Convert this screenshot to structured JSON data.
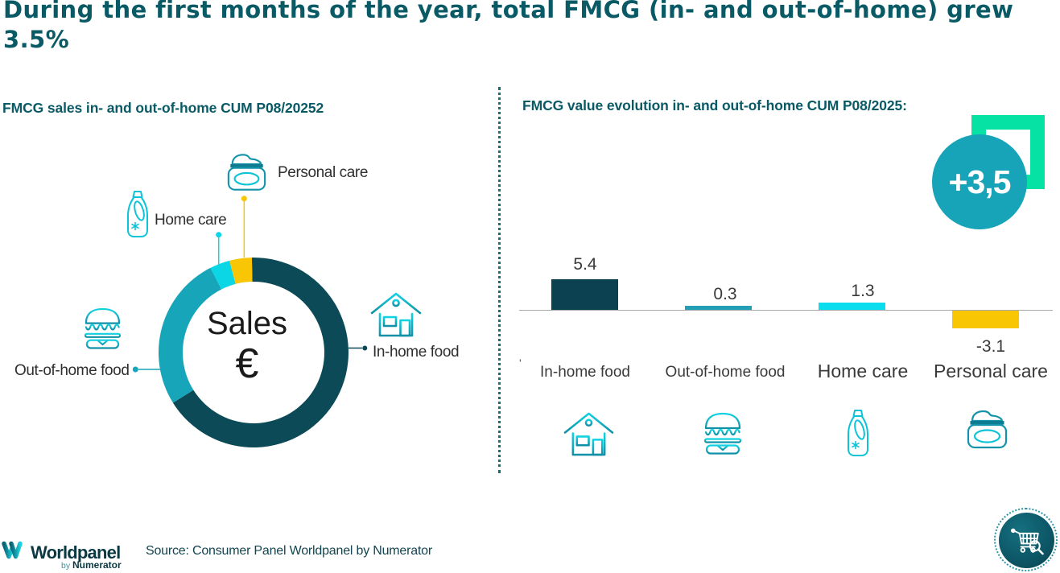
{
  "title": "During the first months of the year, total FMCG (in- and out-of-home) grew\n3.5%",
  "title_color": "#0A5A66",
  "left_panel": {
    "header": "FMCG sales in- and out-of-home CUM P08/20252",
    "donut_center_line1": "Sales",
    "donut_center_line2": "€"
  },
  "right_panel": {
    "header": "FMCG value evolution in- and out-of-home CUM P08/2025:",
    "badge_label": "+3,5",
    "axis_tick": "'"
  },
  "footer": {
    "logo_main": "Worldpanel",
    "logo_by": "by",
    "logo_sub": "Numerator",
    "source": "Source: Consumer Panel Worldpanel by Numerator"
  },
  "colors": {
    "header_text": "#0A5A66",
    "axis": "#a8a8a8",
    "green_square": "#06E2A4",
    "badge_circle": "#17A3B8",
    "label_text": "#3a3a3a"
  },
  "chart_data": [
    {
      "type": "pie",
      "subtype": "donut",
      "title": "FMCG sales in- and out-of-home CUM P08/20252",
      "center_label": "Sales €",
      "categories": [
        "In-home food",
        "Out-of-home food",
        "Home care",
        "Personal care"
      ],
      "values_share_pct": [
        66.4,
        26.4,
        3.4,
        3.8
      ],
      "colors": [
        "#0B4A56",
        "#17A5BA",
        "#0AD6E6",
        "#F9C606"
      ],
      "start_angle_deg": -1,
      "icons": [
        "house",
        "burger",
        "detergent",
        "cream-jar"
      ]
    },
    {
      "type": "bar",
      "title": "FMCG value evolution in- and out-of-home CUM P08/2025:",
      "categories": [
        "In-home food",
        "Out-of-home food",
        "Home care",
        "Personal care"
      ],
      "values": [
        5.4,
        0.3,
        1.3,
        -3.1
      ],
      "value_labels": [
        "5.4",
        "0.3",
        "1.3",
        "-3.1"
      ],
      "colors": [
        "#0B4150",
        "#239FB5",
        "#0ADEEE",
        "#F8C602"
      ],
      "badge": "+3,5",
      "icons": [
        "house",
        "burger",
        "detergent",
        "cream-jar"
      ],
      "baseline": 0,
      "grid": false
    }
  ]
}
